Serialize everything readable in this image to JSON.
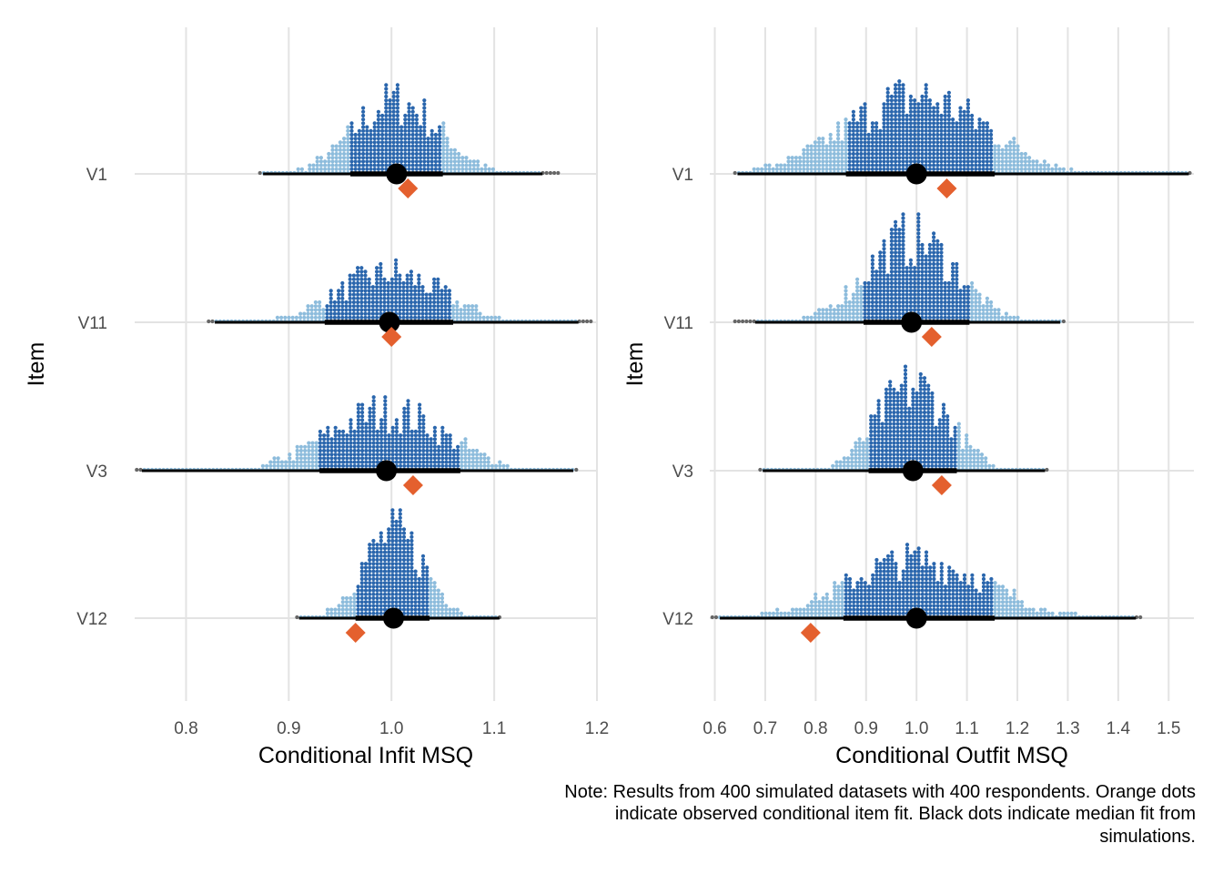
{
  "colors": {
    "grid": "#e3e3e3",
    "dot_inner": "#2a66ad",
    "dot_outer": "#8dbcdc",
    "dot_tail": "#666666",
    "median": "#000000",
    "observed": "#e4602e",
    "interval": "#000000"
  },
  "note": {
    "lines": [
      "Note: Results from 400 simulated datasets with 400 respondents. Orange dots",
      "indicate observed conditional item fit. Black dots indicate median fit from",
      "simulations."
    ]
  },
  "chart_data": [
    {
      "type": "dotplot",
      "xlabel": "Conditional Infit MSQ",
      "ylabel": "Item",
      "xlim": [
        0.75,
        1.2
      ],
      "xticks": [
        "0.8",
        "0.9",
        "1.0",
        "1.1",
        "1.2"
      ],
      "xtick_values": [
        0.8,
        0.9,
        1.0,
        1.1,
        1.2
      ],
      "grid": true,
      "items": [
        {
          "name": "V1",
          "median": 1.005,
          "observed": 1.016,
          "q_inner": [
            0.96,
            1.05
          ],
          "q_outer": [
            0.875,
            1.147
          ],
          "range": [
            0.872,
            1.163
          ],
          "peak": 0.85,
          "spread": 0.042
        },
        {
          "name": "V11",
          "median": 0.998,
          "observed": 1.0,
          "q_inner": [
            0.935,
            1.06
          ],
          "q_outer": [
            0.828,
            1.182
          ],
          "range": [
            0.822,
            1.196
          ],
          "peak": 0.58,
          "spread": 0.052
        },
        {
          "name": "V3",
          "median": 0.995,
          "observed": 1.021,
          "q_inner": [
            0.93,
            1.067
          ],
          "q_outer": [
            0.757,
            1.177
          ],
          "range": [
            0.752,
            1.18
          ],
          "peak": 0.7,
          "spread": 0.058
        },
        {
          "name": "V12",
          "median": 1.002,
          "observed": 0.965,
          "q_inner": [
            0.965,
            1.037
          ],
          "q_outer": [
            0.91,
            1.105
          ],
          "range": [
            0.908,
            1.107
          ],
          "peak": 0.98,
          "spread": 0.031
        }
      ]
    },
    {
      "type": "dotplot",
      "xlabel": "Conditional Outfit MSQ",
      "ylabel": "Item",
      "xlim": [
        0.59,
        1.55
      ],
      "xticks": [
        "0.6",
        "0.7",
        "0.8",
        "0.9",
        "1.0",
        "1.1",
        "1.2",
        "1.3",
        "1.4",
        "1.5"
      ],
      "xtick_values": [
        0.6,
        0.7,
        0.8,
        0.9,
        1.0,
        1.1,
        1.2,
        1.3,
        1.4,
        1.5
      ],
      "grid": true,
      "items": [
        {
          "name": "V1",
          "median": 1.0,
          "observed": 1.06,
          "q_inner": [
            0.86,
            1.155
          ],
          "q_outer": [
            0.645,
            1.54
          ],
          "range": [
            0.64,
            1.545
          ],
          "peak": 0.9,
          "spread": 0.14
        },
        {
          "name": "V11",
          "median": 0.99,
          "observed": 1.03,
          "q_inner": [
            0.895,
            1.105
          ],
          "q_outer": [
            0.68,
            1.285
          ],
          "range": [
            0.64,
            1.295
          ],
          "peak": 0.98,
          "spread": 0.09
        },
        {
          "name": "V3",
          "median": 0.993,
          "observed": 1.05,
          "q_inner": [
            0.905,
            1.08
          ],
          "q_outer": [
            0.695,
            1.255
          ],
          "range": [
            0.69,
            1.262
          ],
          "peak": 0.98,
          "spread": 0.072
        },
        {
          "name": "V12",
          "median": 1.0,
          "observed": 0.79,
          "q_inner": [
            0.855,
            1.155
          ],
          "q_outer": [
            0.61,
            1.435
          ],
          "range": [
            0.595,
            1.447
          ],
          "peak": 0.68,
          "spread": 0.14
        }
      ]
    }
  ]
}
